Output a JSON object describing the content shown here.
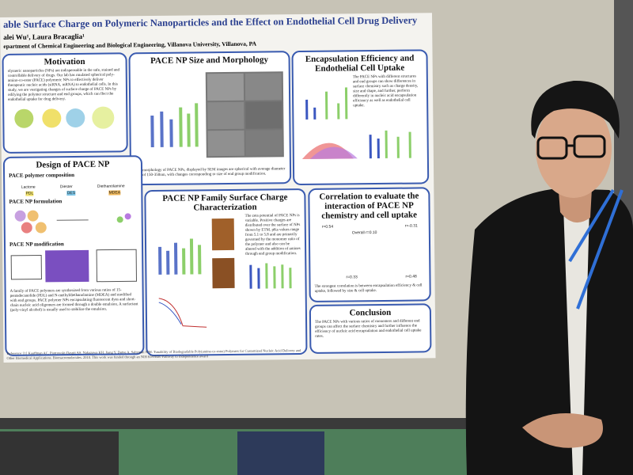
{
  "poster": {
    "title": "able Surface Charge on Polymeric Nanoparticles and the Effect on Endothelial Cell Drug Delivery",
    "authors": "alei Wu¹, Laura Bracaglia¹",
    "affiliation": "epartment of Chemical Engineering and Biological Engineering, Villanova University, Villanova, PA",
    "sections": [
      {
        "heading": "Motivation",
        "body": "olymeric nanoparticles (NPs) are indispensable in the safe, stained and controllable delivery of drugs. Our lab has rmulated spherical poly-amino-co-ester (PACE) polymeric NPs to effectively deliver therapeutic nucleic acids (siRNA, mRNA) to endothelial cells. In this study, we are vestigating changes of surface charge of PACE NPs by odifying the polymer structure and end groups, which can ffect the endothelial uptake for drug delivery."
      },
      {
        "heading": "PACE NP Size and Morphology",
        "body": "The morphology of PACE NPs, displayed by SEM images are spherical with average diameter size of 150-350nm, with changes corresponding to size of end group modification."
      },
      {
        "heading": "Encapsulation Efficiency and Endothelial Cell Uptake",
        "body": "The PACE NPs with different structures and end groups can show differences in surface chemistry such as charge density, size and shape, and further, perform differently in nucleic acid encapsulation efficiency as well as endothelial cell uptake."
      },
      {
        "heading": "Design of PACE NP",
        "body": "A family of PACE polymers are synthesized from various ratios of 15-pentadecanolide (PDL) and N-methyldiethanolamine (MDEA) and modified with end groups. PACE polymer NPs encapsulating fluorescent dyes and short-chain nucleic acid oligomers are formed through a double emulsion. A surfactant (poly-vinyl alcohol) is usually used to stabilize the emulsion."
      },
      {
        "heading": "PACE NP Family Surface Charge Characterization",
        "body": "The zeta potential of PACE NPs is variable. Positive charges are distributed over the surface of NPs shown by ETM. pKa values range from 5.1 to 5.8 and are primarily governed by the monomer ratio of the polymer and also can be altered with the addition of amines through end group modification."
      },
      {
        "heading": "Correlation to evaluate the interaction of PACE NP chemistry and cell uptake",
        "body": "The strongest correlation is between encapsulation efficiency & cell uptake, followed by size & cell uptake."
      },
      {
        "heading": "Conclusion",
        "body": "The PACE NPs with various ratios of monomers and different end groups can affect the surface chemistry and further influence the efficiency of nucleic acid encapsulation and endothelial cell uptake rates."
      }
    ],
    "subheadings": [
      "PACE polymer composition",
      "PACE NP formulation",
      "PACE NP modification"
    ],
    "monomers": [
      "Lactone",
      "Diester",
      "Diethanolamine"
    ],
    "abbreviations": [
      "PDL",
      "DES",
      "MDEA"
    ],
    "correlations": [
      "r=0.54",
      "Overall r=0.10",
      "r=-0.31",
      "r=0.33",
      "r=0.48"
    ],
    "references": "Reference: [1] Kauffman AC, Piotrowski-Daspit AS, Nakazawa KH, Jiang Y, Datye A, Saltzman WM. Tunability of Biodegradable Poly(amine-co-ester) Polymers for Customized Nucleic Acid Delivery and Other Biomedical Applications. Biomacromolecules. 2018. This work was funded through an NIH K99/R00 Pathway to Independence award"
  }
}
